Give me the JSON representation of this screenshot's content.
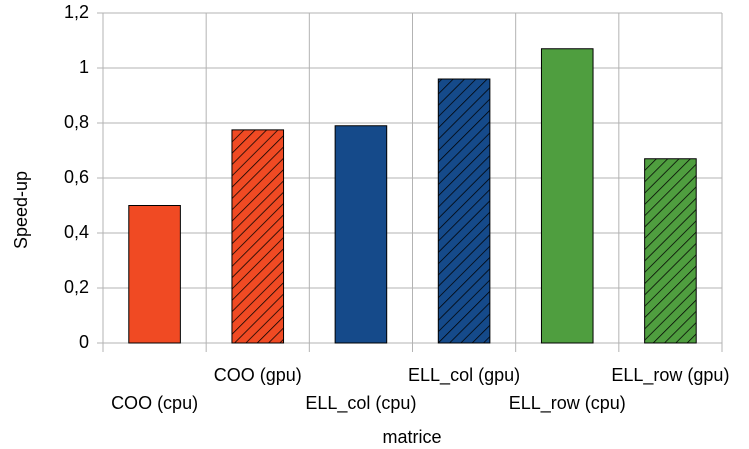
{
  "chart_data": {
    "type": "bar",
    "x_label": "matrice",
    "y_label": "Speed-up",
    "categories": [
      "COO (cpu)",
      "COO (gpu)",
      "ELL_col (cpu)",
      "ELL_col (gpu)",
      "ELL_row (cpu)",
      "ELL_row (gpu)"
    ],
    "values": [
      0.5,
      0.775,
      0.79,
      0.96,
      1.07,
      0.67
    ],
    "colors": [
      "#f04a23",
      "#f04a23",
      "#154a8a",
      "#154a8a",
      "#4f9e3f",
      "#4f9e3f"
    ],
    "hatched": [
      false,
      true,
      false,
      true,
      false,
      true
    ],
    "ylim": [
      0,
      1.2
    ],
    "yticks": [
      0,
      {
        "value": 0.2,
        "label": "0,2"
      },
      {
        "value": 0.4,
        "label": "0,4"
      },
      {
        "value": 0.6,
        "label": "0,6"
      },
      {
        "value": 0.8,
        "label": "0,8"
      },
      1,
      {
        "value": 1.2,
        "label": "1,2"
      }
    ],
    "grid": true
  }
}
